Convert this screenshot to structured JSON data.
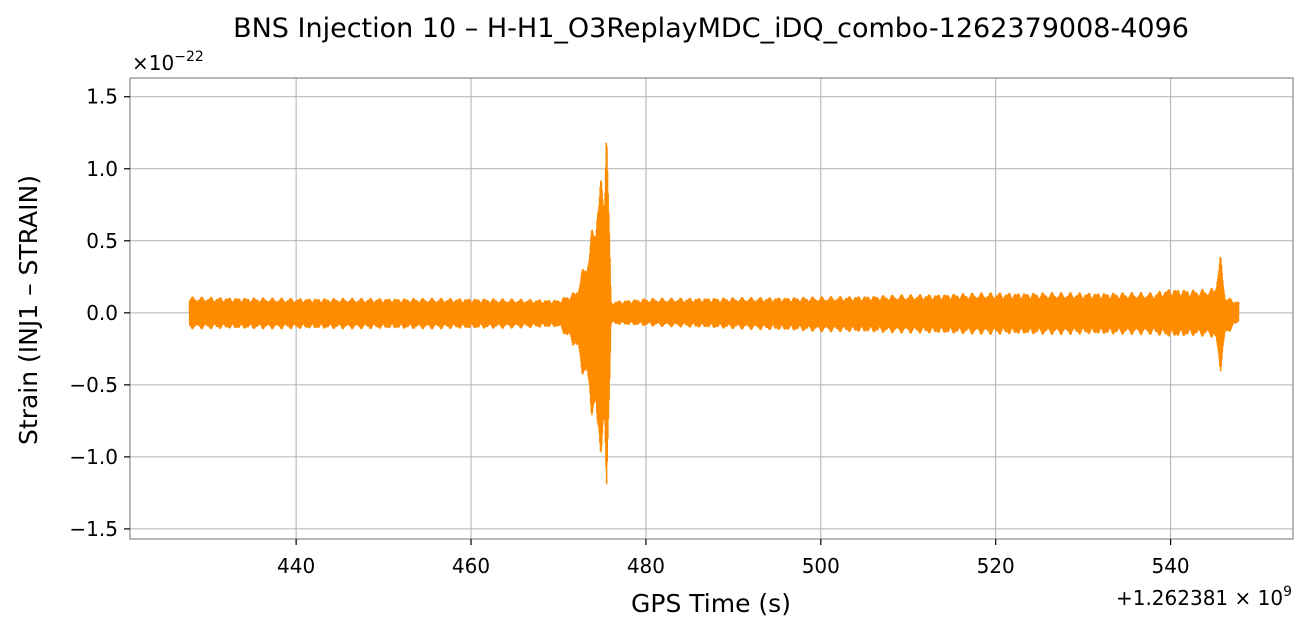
{
  "chart_data": {
    "type": "line",
    "title": "BNS Injection 10 – H-H1_O3ReplayMDC_iDQ_combo-1262379008-4096",
    "xlabel": "GPS Time (s)",
    "ylabel": "Strain (INJ1 – STRAIN)",
    "x_offset_label": "+1.262381 × 10",
    "x_offset_exponent": "9",
    "y_multiplier_label": "×10",
    "y_multiplier_exponent": "−22",
    "xlim": [
      421,
      554
    ],
    "ylim": [
      -1.57,
      1.63
    ],
    "x_ticks": [
      440,
      460,
      480,
      500,
      520,
      540
    ],
    "x_tick_labels": [
      "440",
      "460",
      "480",
      "500",
      "520",
      "540"
    ],
    "y_ticks": [
      1.5,
      1.0,
      0.5,
      0.0,
      -0.5,
      -1.0,
      -1.5
    ],
    "y_tick_labels": [
      "1.5",
      "1.0",
      "0.5",
      "0.0",
      "−0.5",
      "−1.0",
      "−1.5"
    ],
    "grid": true,
    "series": [
      {
        "color": "#ff8c00",
        "x_range": [
          427.8,
          547.8
        ],
        "envelope": {
          "x": [
            427.8,
            440,
            460,
            470,
            472,
            473.5,
            474.5,
            475.2,
            475.5,
            476,
            480,
            500,
            520,
            538,
            540,
            543,
            545,
            545.7,
            546.3,
            547.8
          ],
          "upper": [
            0.11,
            0.1,
            0.1,
            0.09,
            0.15,
            0.45,
            0.85,
            1.0,
            1.48,
            0.08,
            0.1,
            0.11,
            0.14,
            0.14,
            0.17,
            0.16,
            0.17,
            0.4,
            0.11,
            0.08
          ],
          "lower": [
            -0.11,
            -0.11,
            -0.11,
            -0.1,
            -0.25,
            -0.6,
            -0.95,
            -1.0,
            -1.43,
            -0.08,
            -0.09,
            -0.13,
            -0.15,
            -0.15,
            -0.17,
            -0.16,
            -0.17,
            -0.41,
            -0.16,
            -0.06
          ]
        }
      }
    ]
  }
}
